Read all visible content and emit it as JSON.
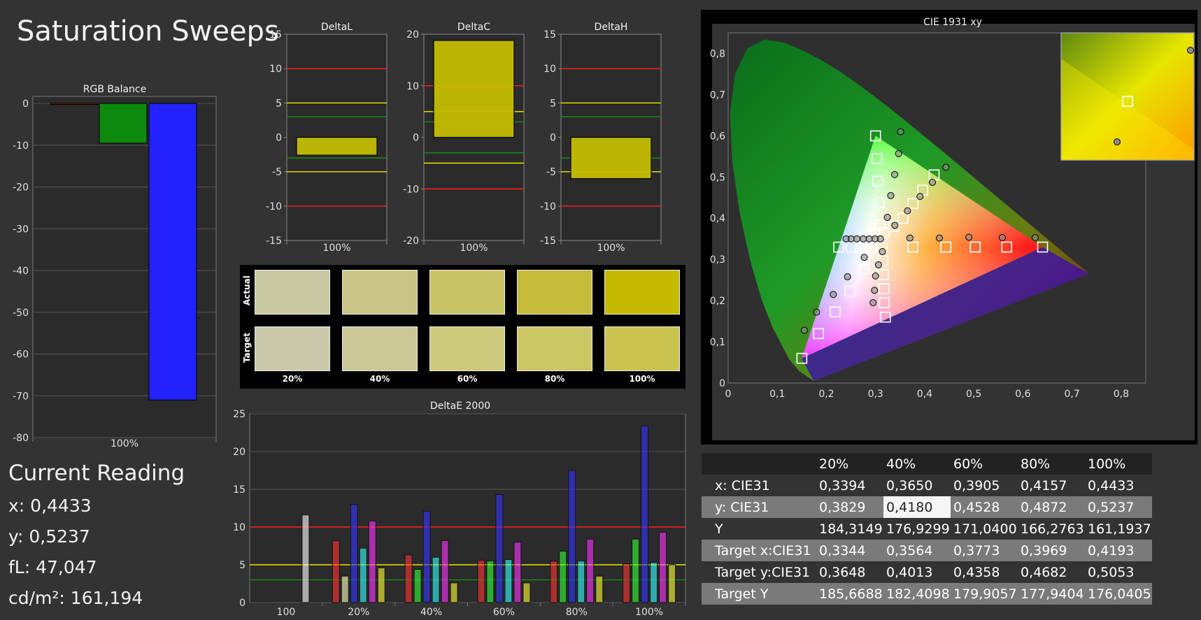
{
  "page_title": "Saturation Sweeps",
  "current_reading": {
    "header": "Current Reading",
    "x": "x: 0,4433",
    "y": "y: 0,5237",
    "fl": "fL: 47,047",
    "cdm2": "cd/m²: 161,194"
  },
  "swatches": {
    "row_labels": [
      "Actual",
      "Target"
    ],
    "columns": [
      "20%",
      "40%",
      "60%",
      "80%",
      "100%"
    ],
    "actual_colors": [
      "#c8c9a2",
      "#c7c484",
      "#c9c465",
      "#c4bb3a",
      "#c4b900"
    ],
    "target_colors": [
      "#c9c9ac",
      "#cac896",
      "#cbc97c",
      "#cbc765",
      "#c9c44f"
    ]
  },
  "table": {
    "columns": [
      "20%",
      "40%",
      "60%",
      "80%",
      "100%"
    ],
    "rows": [
      {
        "label": "x: CIE31",
        "values": [
          "0,3394",
          "0,3650",
          "0,3905",
          "0,4157",
          "0,4433"
        ]
      },
      {
        "label": "y: CIE31",
        "values": [
          "0,3829",
          "0,4180",
          "0,4528",
          "0,4872",
          "0,5237"
        ]
      },
      {
        "label": "Y",
        "values": [
          "184,3149",
          "176,9299",
          "171,0400",
          "166,2763",
          "161,1937"
        ]
      },
      {
        "label": "Target x:CIE31",
        "values": [
          "0,3344",
          "0,3564",
          "0,3773",
          "0,3969",
          "0,4193"
        ]
      },
      {
        "label": "Target y:CIE31",
        "values": [
          "0,3648",
          "0,4013",
          "0,4358",
          "0,4682",
          "0,5053"
        ]
      },
      {
        "label": "Target Y",
        "values": [
          "185,6688",
          "182,4098",
          "179,9057",
          "177,9404",
          "176,0405"
        ]
      }
    ]
  },
  "chart_data": [
    {
      "type": "bar",
      "title": "RGB Balance",
      "categories": [
        "100%"
      ],
      "series": [
        {
          "values": [
            -0.2
          ],
          "color": "#ff3030"
        },
        {
          "values": [
            -9.5
          ],
          "color": "#1c9a1c"
        },
        {
          "values": [
            -71
          ],
          "color": "#2a2aff"
        }
      ],
      "ylim": [
        -80,
        0
      ],
      "yticks": [
        0,
        -10,
        -20,
        -30,
        -40,
        -50,
        -60,
        -70,
        -80
      ],
      "grid": true
    },
    {
      "type": "bar",
      "title": "DeltaL",
      "categories": [
        "100%"
      ],
      "values": [
        -2.6
      ],
      "ylim": [
        -15,
        15
      ],
      "yticks": [
        15,
        10,
        5,
        0,
        -5,
        -10,
        -15
      ],
      "reference_lines": [
        10,
        5,
        3,
        -3,
        -5,
        -10
      ]
    },
    {
      "type": "bar",
      "title": "DeltaC",
      "categories": [
        "100%"
      ],
      "values": [
        18.8
      ],
      "ylim": [
        -20,
        20
      ],
      "yticks": [
        20,
        10,
        0,
        -10,
        -20
      ],
      "reference_lines": [
        10,
        5,
        3,
        -3,
        -5,
        -10
      ]
    },
    {
      "type": "bar",
      "title": "DeltaH",
      "categories": [
        "100%"
      ],
      "values": [
        -6
      ],
      "ylim": [
        -15,
        15
      ],
      "yticks": [
        15,
        10,
        5,
        0,
        -5,
        -10,
        -15
      ],
      "reference_lines": [
        10,
        5,
        3,
        -3,
        -5,
        -10
      ]
    },
    {
      "type": "bar",
      "title": "DeltaE 2000",
      "categories": [
        "100",
        "20%",
        "40%",
        "60%",
        "80%",
        "100%"
      ],
      "series": [
        {
          "color": "#ffffff",
          "values": [
            11.6,
            null,
            null,
            null,
            null,
            null
          ]
        },
        {
          "color": "#ff3333",
          "values": [
            null,
            8.2,
            6.3,
            5.6,
            5.5,
            5.1
          ]
        },
        {
          "color": "#ffffc0",
          "values": [
            null,
            3.5,
            null,
            null,
            null,
            null
          ]
        },
        {
          "color": "#33ff33",
          "values": [
            null,
            null,
            4.4,
            5.5,
            6.8,
            8.4
          ]
        },
        {
          "color": "#3333ff",
          "values": [
            null,
            13.0,
            12.1,
            14.3,
            17.5,
            23.4
          ]
        },
        {
          "color": "#33ffff",
          "values": [
            null,
            7.2,
            6.0,
            5.7,
            5.5,
            5.3
          ]
        },
        {
          "color": "#ff33ff",
          "values": [
            null,
            10.8,
            8.2,
            8.0,
            8.4,
            9.3
          ]
        },
        {
          "color": "#ffff33",
          "values": [
            null,
            4.6,
            2.6,
            2.6,
            3.5,
            5.0
          ]
        }
      ],
      "ylim": [
        0,
        25
      ],
      "yticks": [
        0,
        5,
        10,
        15,
        20,
        25
      ],
      "reference_lines": [
        10,
        5,
        3
      ]
    },
    {
      "type": "scatter",
      "title": "CIE 1931 xy",
      "xlim": [
        0,
        0.85
      ],
      "ylim": [
        0,
        0.85
      ],
      "xticks": [
        "0",
        "0,1",
        "0,2",
        "0,3",
        "0,4",
        "0,5",
        "0,6",
        "0,7",
        "0,8"
      ],
      "yticks": [
        "0",
        "0,1",
        "0,2",
        "0,3",
        "0,4",
        "0,5",
        "0,6",
        "0,7",
        "0,8"
      ],
      "target_squares": [
        [
          0.3127,
          0.329
        ],
        [
          0.3,
          0.6
        ],
        [
          0.303,
          0.545
        ],
        [
          0.305,
          0.49
        ],
        [
          0.307,
          0.437
        ],
        [
          0.309,
          0.384
        ],
        [
          0.318,
          0.365
        ],
        [
          0.337,
          0.38
        ],
        [
          0.356,
          0.4
        ],
        [
          0.376,
          0.436
        ],
        [
          0.396,
          0.468
        ],
        [
          0.4193,
          0.5053
        ],
        [
          0.64,
          0.33
        ],
        [
          0.567,
          0.33
        ],
        [
          0.503,
          0.33
        ],
        [
          0.443,
          0.33
        ],
        [
          0.376,
          0.33
        ],
        [
          0.15,
          0.06
        ],
        [
          0.184,
          0.12
        ],
        [
          0.218,
          0.173
        ],
        [
          0.248,
          0.223
        ],
        [
          0.277,
          0.276
        ],
        [
          0.32,
          0.16
        ],
        [
          0.318,
          0.195
        ],
        [
          0.317,
          0.229
        ],
        [
          0.316,
          0.263
        ],
        [
          0.315,
          0.297
        ],
        [
          0.225,
          0.33
        ],
        [
          0.25,
          0.33
        ],
        [
          0.27,
          0.33
        ],
        [
          0.29,
          0.33
        ]
      ],
      "measured_points": [
        [
          0.351,
          0.61
        ],
        [
          0.347,
          0.557
        ],
        [
          0.339,
          0.506
        ],
        [
          0.331,
          0.455
        ],
        [
          0.324,
          0.402
        ],
        [
          0.3394,
          0.3829
        ],
        [
          0.365,
          0.418
        ],
        [
          0.3905,
          0.4528
        ],
        [
          0.4157,
          0.4872
        ],
        [
          0.4433,
          0.5237
        ],
        [
          0.625,
          0.353
        ],
        [
          0.558,
          0.353
        ],
        [
          0.49,
          0.354
        ],
        [
          0.43,
          0.352
        ],
        [
          0.37,
          0.352
        ],
        [
          0.314,
          0.319
        ],
        [
          0.155,
          0.128
        ],
        [
          0.18,
          0.172
        ],
        [
          0.214,
          0.215
        ],
        [
          0.243,
          0.258
        ],
        [
          0.277,
          0.305
        ],
        [
          0.295,
          0.195
        ],
        [
          0.298,
          0.225
        ],
        [
          0.3,
          0.26
        ],
        [
          0.306,
          0.287
        ],
        [
          0.31,
          0.35
        ],
        [
          0.299,
          0.35
        ],
        [
          0.287,
          0.35
        ],
        [
          0.275,
          0.35
        ],
        [
          0.262,
          0.35
        ],
        [
          0.25,
          0.35
        ],
        [
          0.24,
          0.35
        ]
      ]
    }
  ]
}
